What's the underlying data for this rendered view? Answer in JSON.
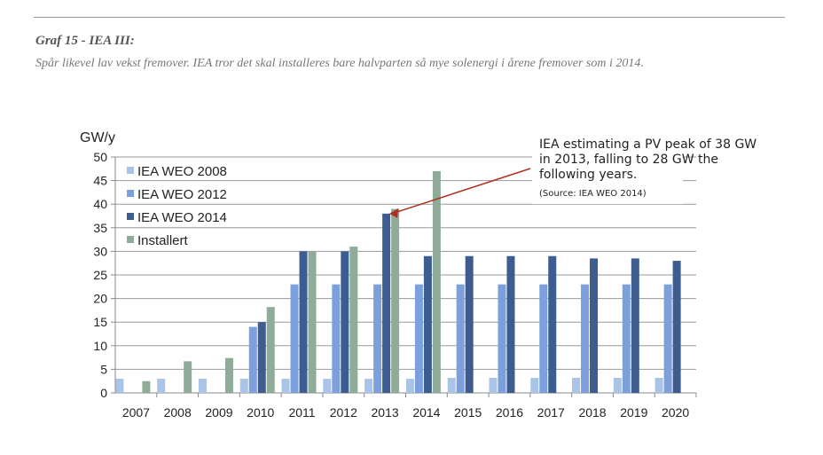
{
  "header": {
    "title": "Graf 15 - IEA III:",
    "subtitle": "Spår likevel lav vekst fremover. IEA tror det skal installeres bare halvparten så mye solenergi i årene fremover som i 2014."
  },
  "chart_data": {
    "type": "bar",
    "ylabel": "GW/y",
    "ylim": [
      0,
      50
    ],
    "yticks": [
      0,
      5,
      10,
      15,
      20,
      25,
      30,
      35,
      40,
      45,
      50
    ],
    "grid": true,
    "legend": "top-left",
    "categories": [
      "2007",
      "2008",
      "2009",
      "2010",
      "2011",
      "2012",
      "2013",
      "2014",
      "2015",
      "2016",
      "2017",
      "2018",
      "2019",
      "2020"
    ],
    "series": [
      {
        "name": "IEA WEO 2008",
        "color": "#a9c4e6",
        "values": [
          3,
          3,
          3,
          3,
          3,
          3,
          3,
          3,
          3.2,
          3.2,
          3.2,
          3.2,
          3.2,
          3.2
        ]
      },
      {
        "name": "IEA WEO 2012",
        "color": "#7ba0dc",
        "values": [
          null,
          null,
          null,
          14,
          23,
          23,
          23,
          23,
          23,
          23,
          23,
          23,
          23,
          23
        ]
      },
      {
        "name": "IEA WEO 2014",
        "color": "#3d5d91",
        "values": [
          null,
          null,
          null,
          15,
          30,
          30,
          38,
          29,
          29,
          29,
          29,
          28.5,
          28.5,
          28
        ]
      },
      {
        "name": "Installert",
        "color": "#8fac98",
        "values": [
          2.5,
          6.7,
          7.4,
          18.2,
          30,
          31,
          39,
          47,
          null,
          null,
          null,
          null,
          null,
          null
        ]
      }
    ],
    "annotation": {
      "lines": [
        "IEA estimating a PV peak of 38 GW",
        "in 2013, falling to 28 GW the",
        "following years."
      ],
      "source": "(Source: IEA WEO 2014)",
      "points_to": {
        "category": "2013",
        "value": 38
      },
      "arrow_color": "#b03020"
    }
  }
}
